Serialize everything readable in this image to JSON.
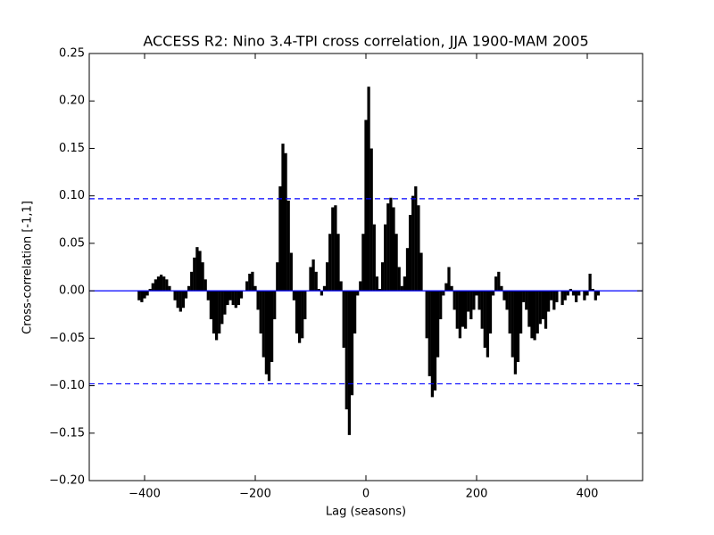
{
  "chart_data": {
    "type": "xcorr",
    "title": "ACCESS R2: Nino 3.4-TPI cross correlation, JJA 1900-MAM 2005",
    "x_label": "Lag (seasons)",
    "y_label": "Cross-correlation [-1,1]",
    "color": "#000000",
    "line_color": "#0000ff",
    "baseline": 0,
    "confidence_bounds": [
      0.097,
      -0.098
    ],
    "xlim": [
      -500,
      500
    ],
    "ylim": [
      -0.2,
      0.25
    ],
    "xticks": [
      {
        "value": -400,
        "label": "−400"
      },
      {
        "value": -200,
        "label": "−200"
      },
      0,
      200,
      400
    ],
    "yticks": [
      {
        "value": -0.2,
        "label": "−0.20"
      },
      {
        "value": -0.15,
        "label": "−0.15"
      },
      {
        "value": -0.1,
        "label": "−0.10"
      },
      {
        "value": -0.05,
        "label": "−0.05"
      },
      {
        "value": 0,
        "label": "0.00"
      },
      {
        "value": 0.05,
        "label": "0.05"
      },
      {
        "value": 0.1,
        "label": "0.10"
      },
      {
        "value": 0.15,
        "label": "0.15"
      },
      {
        "value": 0.2,
        "label": "0.20"
      },
      {
        "value": 0.25,
        "label": "0.25"
      }
    ],
    "x": [
      -420,
      -415,
      -410,
      -405,
      -400,
      -395,
      -390,
      -385,
      -380,
      -375,
      -370,
      -365,
      -360,
      -355,
      -350,
      -345,
      -340,
      -335,
      -330,
      -325,
      -320,
      -315,
      -310,
      -305,
      -300,
      -295,
      -290,
      -285,
      -280,
      -275,
      -270,
      -265,
      -260,
      -255,
      -250,
      -245,
      -240,
      -235,
      -230,
      -225,
      -220,
      -215,
      -210,
      -205,
      -200,
      -195,
      -190,
      -185,
      -180,
      -175,
      -170,
      -165,
      -160,
      -155,
      -150,
      -145,
      -140,
      -135,
      -130,
      -125,
      -120,
      -115,
      -110,
      -105,
      -100,
      -95,
      -90,
      -85,
      -80,
      -75,
      -70,
      -65,
      -60,
      -55,
      -50,
      -45,
      -40,
      -35,
      -30,
      -25,
      -20,
      -15,
      -10,
      -5,
      0,
      5,
      10,
      15,
      20,
      25,
      30,
      35,
      40,
      45,
      50,
      55,
      60,
      65,
      70,
      75,
      80,
      85,
      90,
      95,
      100,
      105,
      110,
      115,
      120,
      125,
      130,
      135,
      140,
      145,
      150,
      155,
      160,
      165,
      170,
      175,
      180,
      185,
      190,
      195,
      200,
      205,
      210,
      215,
      220,
      225,
      230,
      235,
      240,
      245,
      250,
      255,
      260,
      265,
      270,
      275,
      280,
      285,
      290,
      295,
      300,
      305,
      310,
      315,
      320,
      325,
      330,
      335,
      340,
      345,
      350,
      355,
      360,
      365,
      370,
      375,
      380,
      385,
      390,
      395,
      400,
      405,
      410,
      415,
      420
    ],
    "values": [
      0.0,
      0.0,
      -0.01,
      -0.012,
      -0.008,
      -0.005,
      0.002,
      0.008,
      0.012,
      0.015,
      0.017,
      0.015,
      0.012,
      0.005,
      0.0,
      -0.01,
      -0.018,
      -0.022,
      -0.018,
      -0.008,
      0.005,
      0.02,
      0.035,
      0.046,
      0.042,
      0.03,
      0.012,
      -0.01,
      -0.03,
      -0.045,
      -0.052,
      -0.045,
      -0.035,
      -0.025,
      -0.015,
      -0.01,
      -0.015,
      -0.018,
      -0.015,
      -0.008,
      0.0,
      0.01,
      0.018,
      0.02,
      0.005,
      -0.02,
      -0.045,
      -0.07,
      -0.088,
      -0.095,
      -0.075,
      -0.03,
      0.03,
      0.11,
      0.155,
      0.145,
      0.095,
      0.04,
      -0.01,
      -0.045,
      -0.055,
      -0.05,
      -0.03,
      0.0,
      0.025,
      0.033,
      0.02,
      0.002,
      -0.005,
      0.005,
      0.03,
      0.06,
      0.088,
      0.09,
      0.06,
      0.01,
      -0.06,
      -0.125,
      -0.152,
      -0.11,
      -0.045,
      -0.005,
      0.01,
      0.06,
      0.18,
      0.215,
      0.15,
      0.07,
      0.015,
      0.002,
      0.03,
      0.07,
      0.092,
      0.098,
      0.088,
      0.06,
      0.025,
      0.005,
      0.015,
      0.045,
      0.08,
      0.1,
      0.11,
      0.09,
      0.04,
      0.0,
      -0.05,
      -0.09,
      -0.112,
      -0.105,
      -0.07,
      -0.03,
      -0.005,
      0.008,
      0.025,
      0.005,
      -0.02,
      -0.04,
      -0.05,
      -0.038,
      -0.04,
      -0.022,
      -0.03,
      -0.02,
      -0.005,
      -0.02,
      -0.04,
      -0.06,
      -0.07,
      -0.045,
      -0.005,
      0.015,
      0.02,
      0.005,
      -0.01,
      -0.02,
      -0.045,
      -0.07,
      -0.088,
      -0.075,
      -0.045,
      -0.012,
      -0.02,
      -0.038,
      -0.05,
      -0.052,
      -0.045,
      -0.035,
      -0.03,
      -0.04,
      -0.022,
      -0.01,
      -0.02,
      -0.012,
      0.0,
      -0.015,
      -0.01,
      -0.005,
      0.002,
      -0.005,
      -0.012,
      -0.005,
      0.0,
      -0.01,
      -0.005,
      0.018,
      0.002,
      -0.01,
      -0.005
    ]
  }
}
